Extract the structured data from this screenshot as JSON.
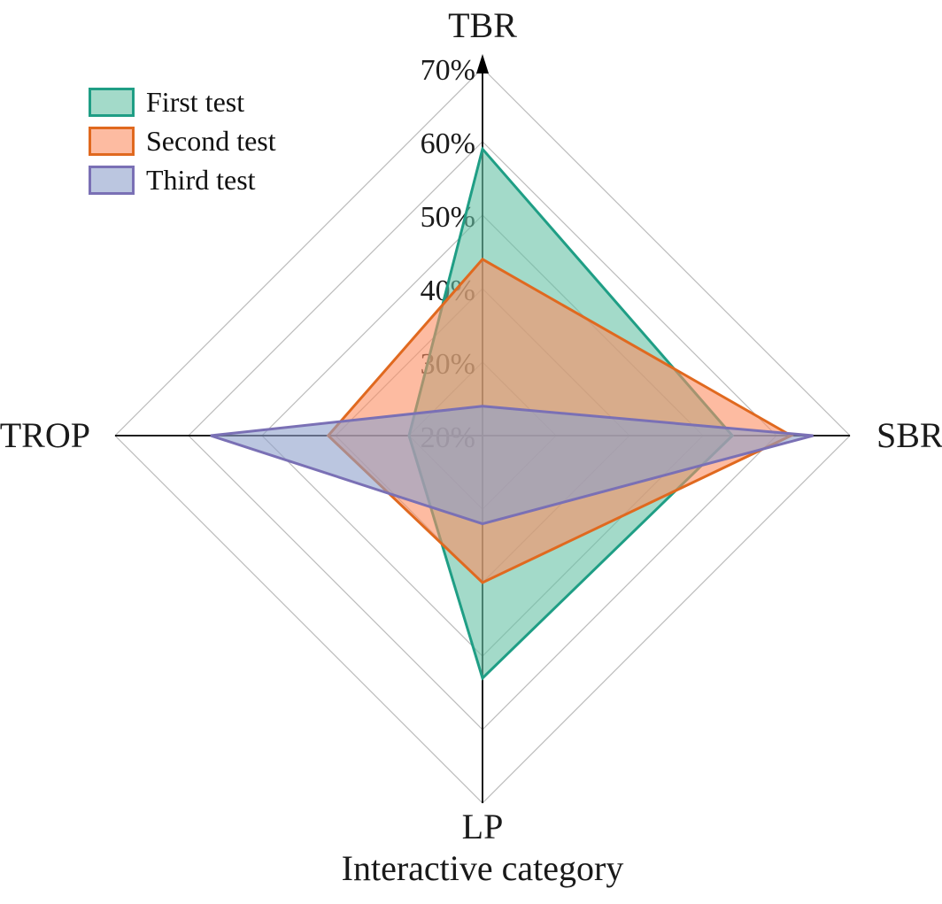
{
  "figure": {
    "background": "#ffffff",
    "text_color": "#1a1a1a"
  },
  "chart_data": {
    "type": "radar",
    "categories": [
      "TBR",
      "SBR",
      "LP",
      "TROP"
    ],
    "angles_deg": [
      90,
      0,
      270,
      180
    ],
    "series": [
      {
        "name": "First test",
        "fill": "#66c2a5",
        "stroke": "#1f9e85",
        "values": [
          59,
          54,
          53,
          30
        ]
      },
      {
        "name": "Second test",
        "fill": "#fc8d62",
        "stroke": "#e0691f",
        "values": [
          44,
          62,
          40,
          41
        ]
      },
      {
        "name": "Third test",
        "fill": "#8da0cb",
        "stroke": "#7a70b5",
        "values": [
          24,
          65,
          32,
          57
        ]
      }
    ],
    "radial_axis": {
      "min": 20,
      "max": 70,
      "step": 10,
      "ticks": [
        20,
        30,
        40,
        50,
        60,
        70
      ],
      "tick_labels": [
        "20%",
        "30%",
        "40%",
        "50%",
        "60%",
        "70%"
      ]
    },
    "axis_title": "Interactive category",
    "grid": {
      "color": "#bbbbbb",
      "shape": "diamond",
      "on": true
    },
    "axis_line_color": "#000000",
    "fill_opacity": 0.6,
    "legend_position": "top-left"
  }
}
